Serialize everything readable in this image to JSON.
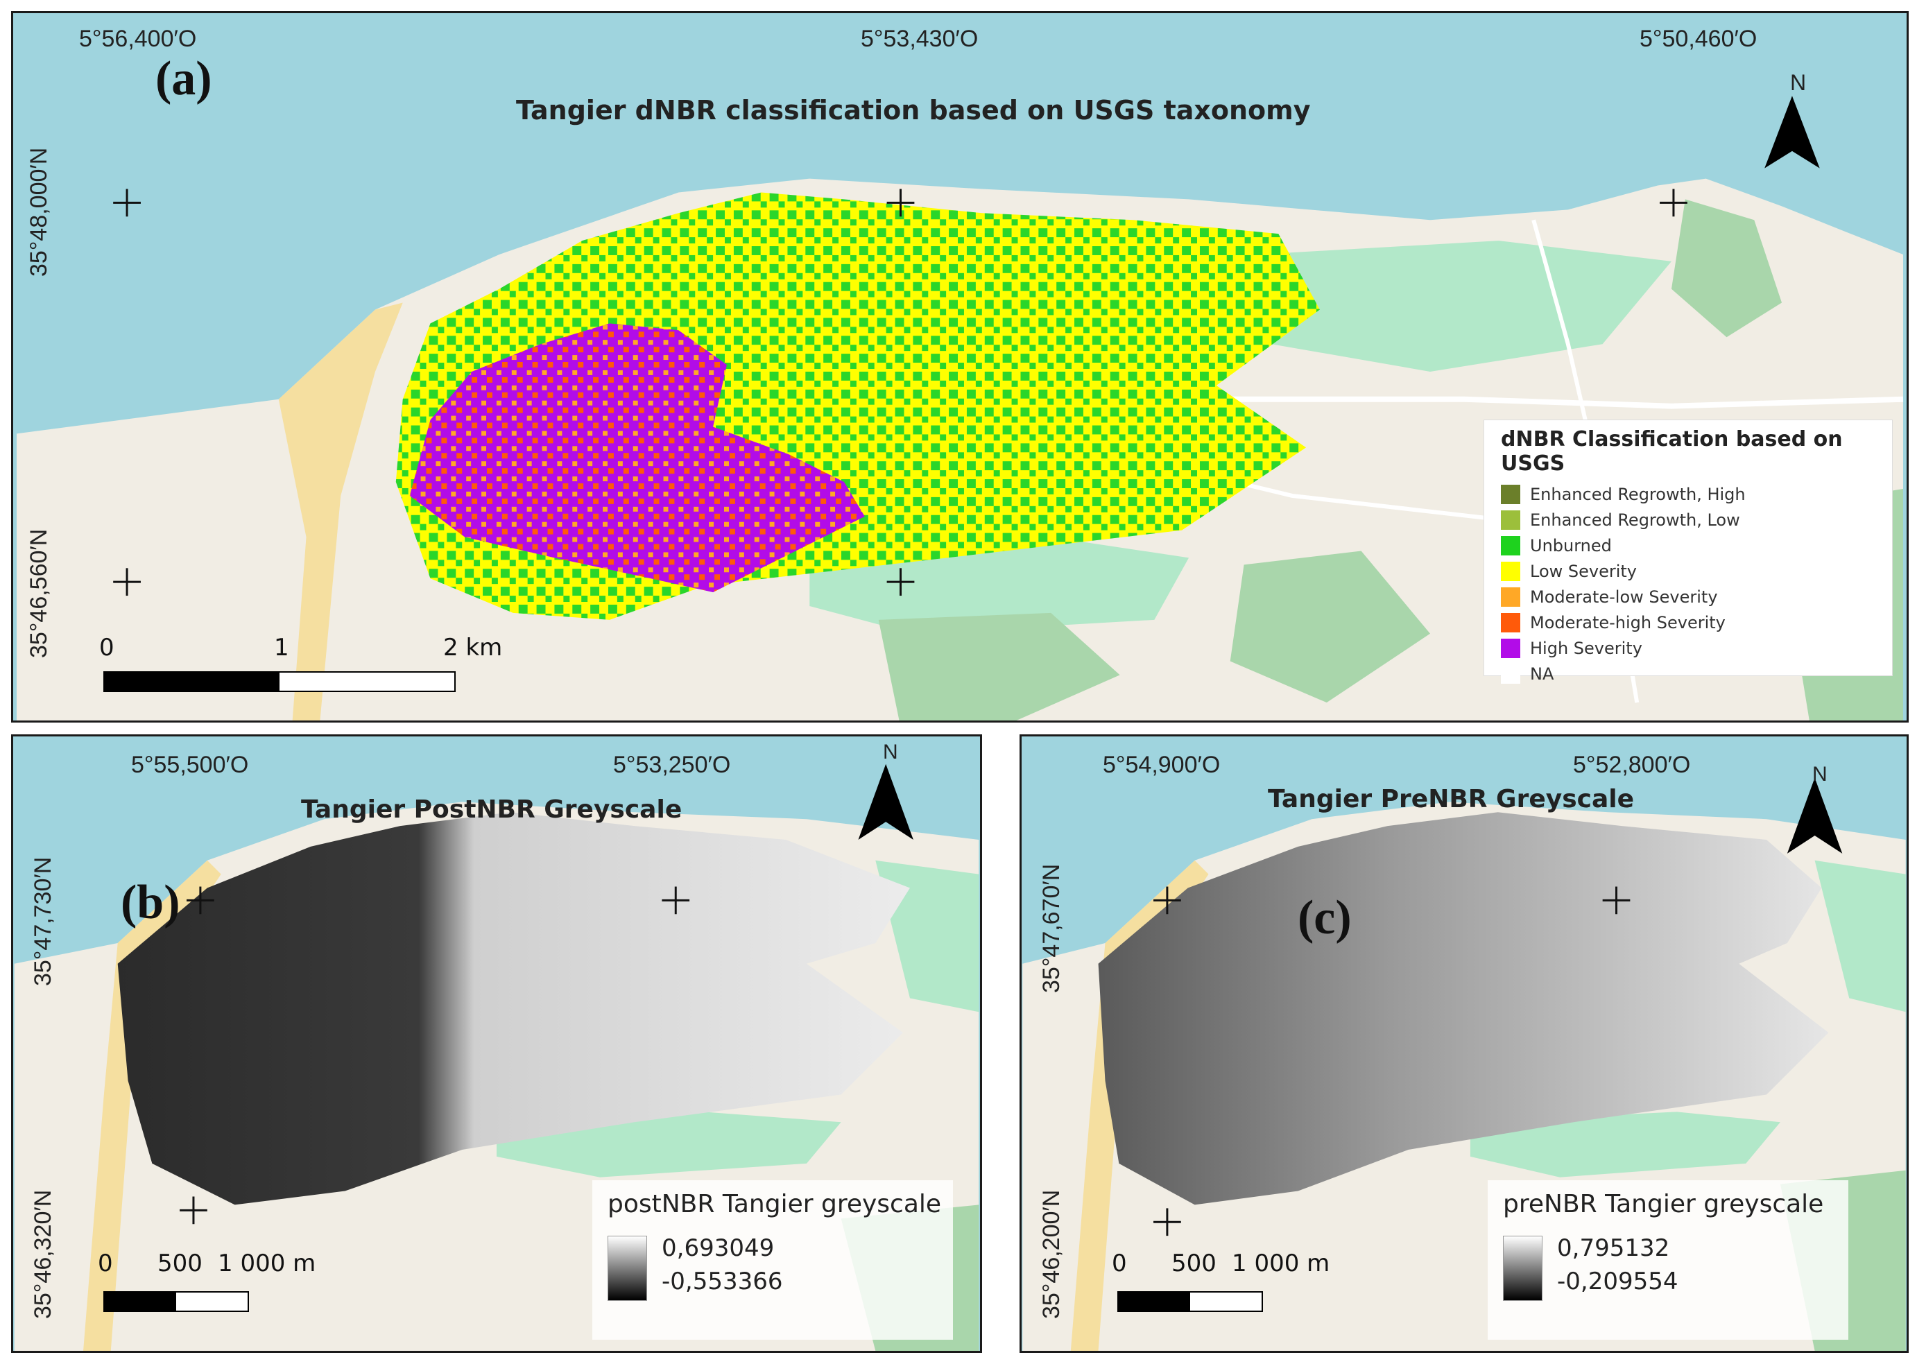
{
  "panel_a": {
    "label": "(a)",
    "title": "Tangier dNBR classification based on USGS taxonomy",
    "top_coords": [
      "5°56,400′O",
      "5°53,430′O",
      "5°50,460′O"
    ],
    "left_coords": [
      "35°48,000′N",
      "35°46,560′N"
    ],
    "north_label": "N",
    "scale_labels": [
      "0",
      "1",
      "2 km"
    ],
    "legend": {
      "title": "dNBR Classification based on USGS",
      "items": [
        {
          "label": "Enhanced Regrowth, High",
          "color": "#6b7f2a"
        },
        {
          "label": "Enhanced Regrowth, Low",
          "color": "#9cbf3b"
        },
        {
          "label": "Unburned",
          "color": "#1ed21e"
        },
        {
          "label": "Low Severity",
          "color": "#ffff00"
        },
        {
          "label": "Moderate-low Severity",
          "color": "#ffa826"
        },
        {
          "label": "Moderate-high Severity",
          "color": "#ff5a0a"
        },
        {
          "label": "High Severity",
          "color": "#b20ce8"
        },
        {
          "label": "NA",
          "color": "#ffffff"
        }
      ]
    }
  },
  "panel_b": {
    "label": "(b)",
    "title": "Tangier PostNBR Greyscale",
    "top_coords": [
      "5°55,500′O",
      "5°53,250′O"
    ],
    "left_coords": [
      "35°47,730′N",
      "35°46,320′N"
    ],
    "north_label": "N",
    "scale_labels": [
      "0",
      "500",
      "1 000 m"
    ],
    "legend": {
      "title": "postNBR Tangier greyscale",
      "max": "0,693049",
      "min": "-0,553366"
    }
  },
  "panel_c": {
    "label": "(c)",
    "title": "Tangier PreNBR Greyscale",
    "top_coords": [
      "5°54,900′O",
      "5°52,800′O"
    ],
    "left_coords": [
      "35°47,670′N",
      "35°46,200′N"
    ],
    "north_label": "N",
    "scale_labels": [
      "0",
      "500",
      "1 000 m"
    ],
    "legend": {
      "title": "preNBR Tangier greyscale",
      "max": "0,795132",
      "min": "-0,209554"
    }
  },
  "colors": {
    "sea": "#9fd4de",
    "land": "#f1ede4",
    "park": "#b2e8c9",
    "forest": "#a9d6ab"
  }
}
